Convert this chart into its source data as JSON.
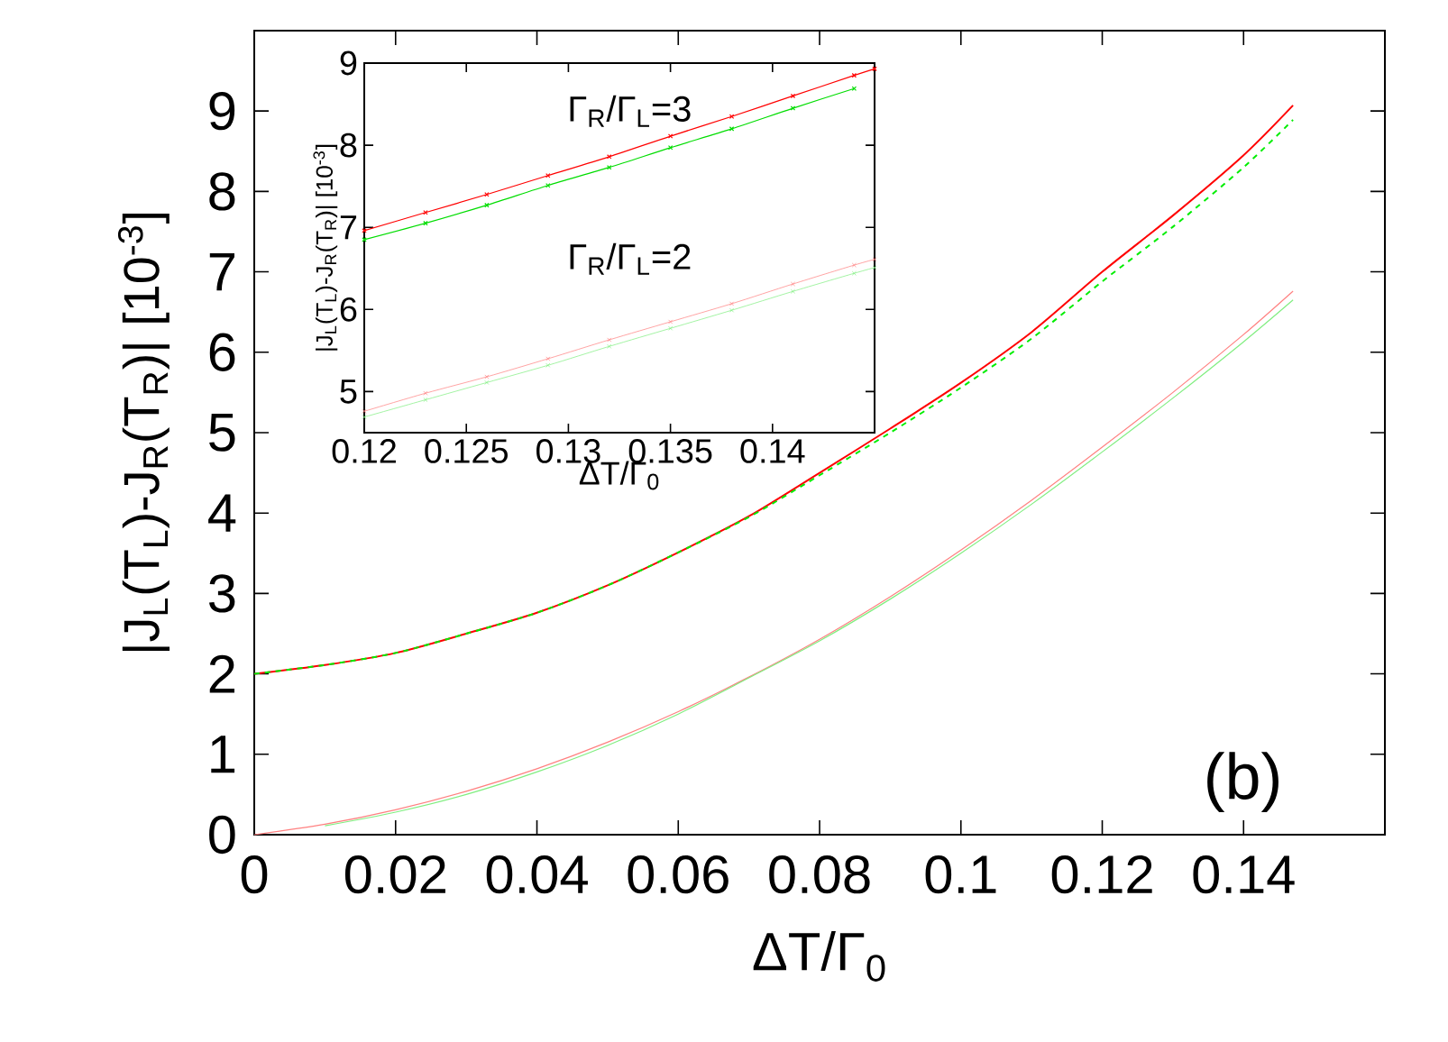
{
  "chart_data": [
    {
      "type": "line",
      "xlabel": "ΔT/Γ$_{0}$",
      "ylabel": "|J$_{L}$(T$_{L}$)-J$_{R}$(T$_{R}$)| [10$^{-3}$]",
      "xlim": [
        0,
        0.16
      ],
      "xticks": [
        0,
        0.02,
        0.04,
        0.06,
        0.08,
        0.1,
        0.12,
        0.14
      ],
      "ylim": [
        0,
        10
      ],
      "yticks": [
        0,
        1,
        2,
        3,
        4,
        5,
        6,
        7,
        8,
        9
      ],
      "annotations": [
        "(b)"
      ],
      "x": [
        0,
        0.01,
        0.02,
        0.03,
        0.04,
        0.05,
        0.06,
        0.07,
        0.08,
        0.09,
        0.1,
        0.11,
        0.12,
        0.13,
        0.14,
        0.147
      ],
      "series": [
        {
          "color": "#ff0000",
          "line_style": "solid",
          "values": [
            2,
            2.11,
            2.26,
            2.5,
            2.76,
            3.1,
            3.51,
            3.96,
            4.5,
            5.05,
            5.62,
            6.25,
            7.0,
            7.7,
            8.45,
            9.07
          ]
        },
        {
          "color": "#00ee00",
          "line_style": "dashed",
          "values": [
            2,
            2.11,
            2.26,
            2.5,
            2.76,
            3.1,
            3.51,
            3.95,
            4.47,
            5.0,
            5.56,
            6.17,
            6.88,
            7.56,
            8.3,
            8.89
          ]
        },
        {
          "color": "#ff8080",
          "line_style": "solid",
          "values": [
            0,
            0.13,
            0.31,
            0.54,
            0.82,
            1.15,
            1.53,
            1.96,
            2.43,
            2.96,
            3.54,
            4.16,
            4.82,
            5.5,
            6.22,
            6.76
          ]
        },
        {
          "color": "#80ee80",
          "line_style": "solid",
          "values": [
            null,
            0.11,
            0.28,
            0.5,
            0.78,
            1.11,
            1.5,
            1.95,
            2.41,
            2.93,
            3.5,
            4.11,
            4.76,
            5.43,
            6.13,
            6.65
          ]
        }
      ]
    },
    {
      "type": "line",
      "xlabel": "ΔT/Γ$_{0}$",
      "ylabel": "|J$_{L}$(T$_{L}$)-J$_{R}$(T$_{R}$)| [10$^{-3}$]",
      "xlim": [
        0.12,
        0.145
      ],
      "xticks": [
        0.12,
        0.125,
        0.13,
        0.135,
        0.14
      ],
      "ylim": [
        4.5,
        9
      ],
      "yticks": [
        5,
        6,
        7,
        8,
        9
      ],
      "annotations": [
        "Γ$_{R}$/Γ$_{L}$=3",
        "Γ$_{R}$/Γ$_{L}$=2"
      ],
      "x": [
        0.12,
        0.123,
        0.126,
        0.129,
        0.132,
        0.135,
        0.138,
        0.141,
        0.144,
        0.145
      ],
      "series": [
        {
          "color": "#ff0000",
          "marker": "cross",
          "values": [
            6.96,
            7.18,
            7.4,
            7.63,
            7.86,
            8.11,
            8.35,
            8.6,
            8.85,
            8.93
          ]
        },
        {
          "color": "#00dd00",
          "marker": "cross",
          "values": [
            6.85,
            7.05,
            7.27,
            7.51,
            7.73,
            7.97,
            8.2,
            8.45,
            8.69,
            null
          ]
        },
        {
          "color": "#ff8080",
          "marker": "cross",
          "values": [
            4.76,
            4.98,
            5.18,
            5.4,
            5.63,
            5.85,
            6.07,
            6.31,
            6.54,
            6.61
          ]
        },
        {
          "color": "#80ee80",
          "marker": "cross",
          "values": [
            4.69,
            4.9,
            5.11,
            5.32,
            5.55,
            5.77,
            5.99,
            6.22,
            6.44,
            6.51
          ]
        }
      ]
    }
  ]
}
